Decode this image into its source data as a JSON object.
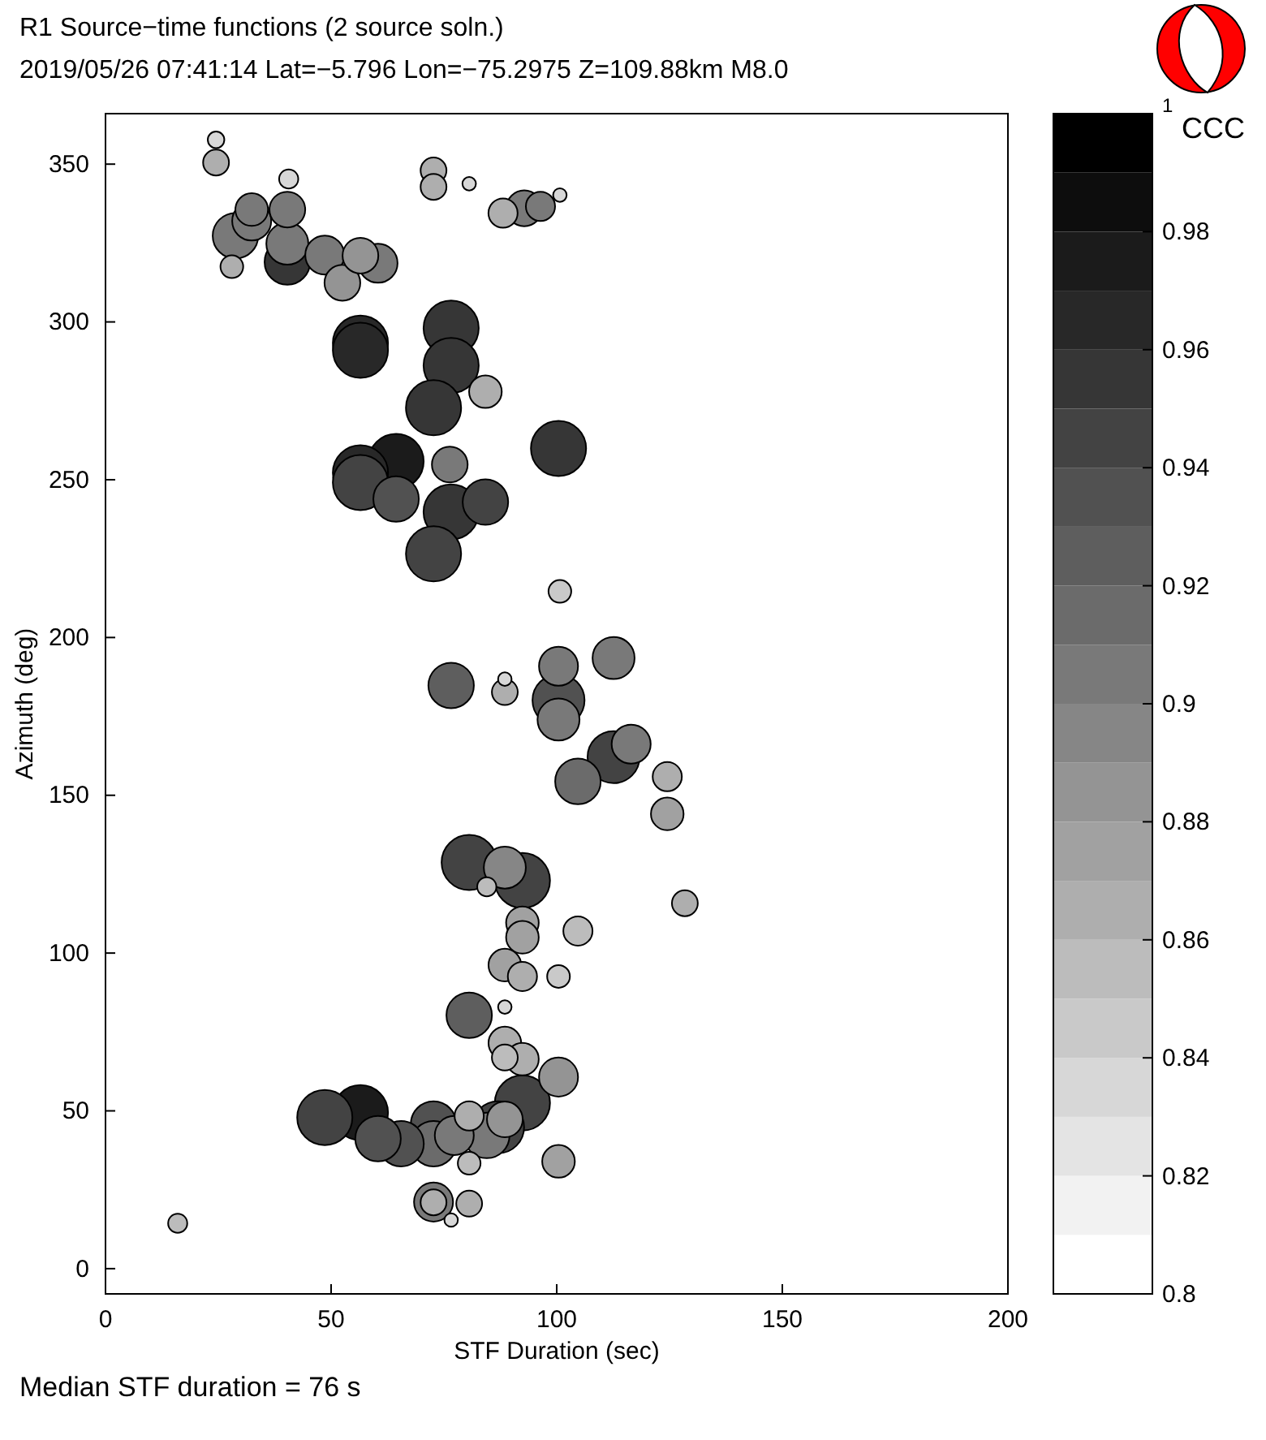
{
  "chart_data": {
    "type": "bubble",
    "title": "R1 Source−time functions (2 source soln.)",
    "subtitle": "2019/05/26 07:41:14  Lat=−5.796 Lon=−75.2975 Z=109.88km  M8.0",
    "xlabel": "STF Duration (sec)",
    "ylabel": "Azimuth (deg)",
    "clabel": "CCC",
    "annotations": [
      "Median STF duration = 76 s"
    ],
    "xlim": [
      0,
      200
    ],
    "xticks": [
      0,
      50,
      100,
      150,
      200
    ],
    "ylim": [
      -8,
      366
    ],
    "yticks": [
      0,
      50,
      100,
      150,
      200,
      250,
      300,
      350
    ],
    "clim": [
      0.8,
      1
    ],
    "cticks": [
      0.8,
      0.82,
      0.84,
      0.86,
      0.88,
      0.9,
      0.92,
      0.94,
      0.96,
      0.98,
      {
        "value": 1,
        "label": "1"
      }
    ],
    "grid": false,
    "marker": "circle",
    "x": [
      24.5,
      24.5,
      40.6,
      32.4,
      28.8,
      28,
      40.3,
      40.3,
      40.3,
      32.4,
      48.6,
      52.5,
      56.5,
      60.4,
      72.7,
      72.7,
      80.6,
      88.1,
      92.8,
      96.4,
      100.7,
      56.5,
      56.5,
      76.6,
      76.6,
      84.2,
      72.7,
      100.4,
      76.3,
      64.4,
      56.5,
      56.5,
      64.4,
      84.2,
      76.6,
      72.7,
      100.7,
      76.6,
      88.5,
      88.5,
      100.4,
      100.4,
      100.4,
      112.6,
      112.6,
      116.5,
      104.7,
      124.5,
      124.5,
      80.6,
      88.5,
      84.5,
      92.4,
      128.4,
      92.4,
      92.4,
      104.7,
      88.5,
      92.4,
      100.4,
      80.6,
      88.5,
      88.5,
      88.5,
      92.4,
      100.4,
      92.4,
      88.5,
      87,
      84.5,
      80.6,
      72.7,
      72.7,
      80.6,
      65.5,
      60.4,
      56.5,
      48.6,
      77.3,
      100.4,
      72.7,
      72.7,
      80.6,
      76.6,
      16
    ],
    "values": [
      357.7,
      350.5,
      345.3,
      335.6,
      327.3,
      317.5,
      335.6,
      324.8,
      319,
      332,
      321.2,
      312.4,
      321,
      318.6,
      348,
      342.8,
      343.8,
      334.5,
      336,
      336.6,
      340.2,
      293.3,
      291,
      298,
      286.2,
      277.9,
      272.8,
      259.9,
      254.8,
      255.8,
      252.2,
      249.1,
      243.9,
      242.9,
      239.8,
      226.5,
      214.6,
      184.8,
      186.8,
      182.7,
      190.9,
      180.1,
      174,
      193.5,
      162.1,
      166.2,
      154.4,
      155.9,
      144.1,
      128.7,
      127.1,
      121,
      123,
      115.8,
      109.6,
      105,
      107,
      96.2,
      92.6,
      92.6,
      80.3,
      82.9,
      71.5,
      66.9,
      66.4,
      60.7,
      52.5,
      47.3,
      44.8,
      42.2,
      48.4,
      45.8,
      39.6,
      33.4,
      39.6,
      41.2,
      49.4,
      47.9,
      42.2,
      34,
      21.1,
      21,
      20.6,
      15.4,
      14.4
    ],
    "sizes": [
      0.09,
      0.22,
      0.12,
      0.35,
      0.68,
      0.17,
      0.42,
      0.58,
      0.68,
      0.5,
      0.5,
      0.42,
      0.42,
      0.5,
      0.22,
      0.22,
      0.06,
      0.28,
      0.42,
      0.28,
      0.06,
      1,
      1,
      1,
      1,
      0.35,
      1,
      1,
      0.42,
      1,
      1,
      1,
      0.68,
      0.68,
      1,
      1,
      0.17,
      0.68,
      0.06,
      0.22,
      0.5,
      0.89,
      0.58,
      0.58,
      0.89,
      0.5,
      0.68,
      0.28,
      0.35,
      1,
      0.58,
      0.12,
      1,
      0.22,
      0.35,
      0.35,
      0.28,
      0.35,
      0.28,
      0.17,
      0.68,
      0.06,
      0.35,
      0.22,
      0.35,
      0.5,
      1,
      0.42,
      0.89,
      0.68,
      0.28,
      0.68,
      0.68,
      0.17,
      0.68,
      0.68,
      1,
      1,
      0.5,
      0.35,
      0.5,
      0.22,
      0.22,
      0.06,
      0.12
    ],
    "cvalues": [
      0.83,
      0.86,
      0.83,
      0.9,
      0.9,
      0.86,
      0.9,
      0.9,
      0.95,
      0.9,
      0.9,
      0.88,
      0.88,
      0.9,
      0.86,
      0.86,
      0.83,
      0.86,
      0.9,
      0.9,
      0.83,
      0.96,
      0.96,
      0.95,
      0.95,
      0.86,
      0.95,
      0.95,
      0.9,
      0.97,
      0.96,
      0.94,
      0.93,
      0.94,
      0.95,
      0.94,
      0.84,
      0.92,
      0.83,
      0.86,
      0.9,
      0.93,
      0.9,
      0.9,
      0.94,
      0.9,
      0.91,
      0.86,
      0.87,
      0.94,
      0.89,
      0.85,
      0.94,
      0.86,
      0.87,
      0.87,
      0.85,
      0.87,
      0.86,
      0.84,
      0.92,
      0.83,
      0.86,
      0.85,
      0.86,
      0.88,
      0.94,
      0.88,
      0.94,
      0.9,
      0.86,
      0.93,
      0.91,
      0.85,
      0.93,
      0.93,
      0.97,
      0.94,
      0.9,
      0.87,
      0.9,
      0.86,
      0.86,
      0.83,
      0.85
    ]
  }
}
